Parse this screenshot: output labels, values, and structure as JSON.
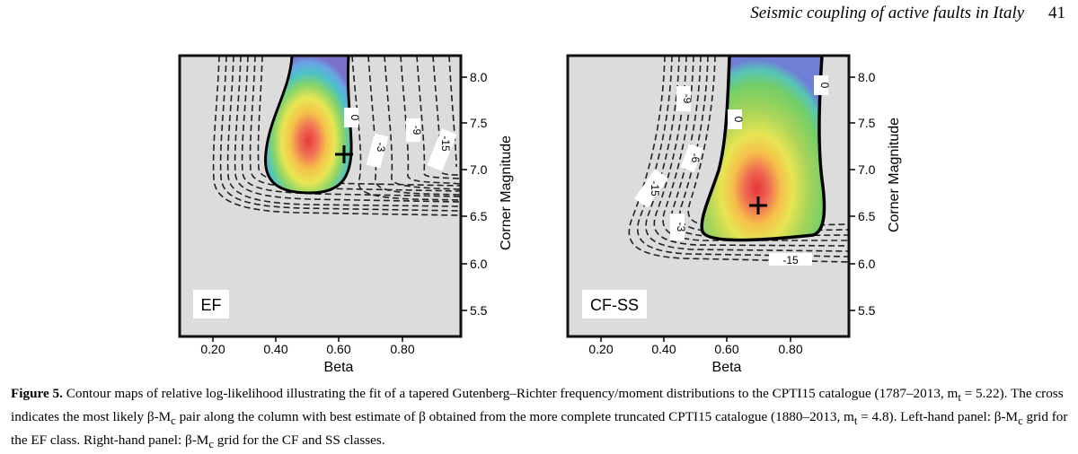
{
  "header": {
    "running_title": "Seismic coupling of active faults in Italy",
    "page_number": "41"
  },
  "panels": [
    {
      "label": "EF",
      "xlabel": "Beta",
      "ylabel": "Corner Magnitude",
      "x_ticks": [
        "0.20",
        "0.40",
        "0.60",
        "0.80"
      ],
      "y_ticks": [
        "8.0",
        "7.5",
        "7.0",
        "6.5",
        "6.0",
        "5.5"
      ],
      "contour_labels": [
        "0",
        "-3",
        "-9",
        "-15"
      ],
      "best_fit": {
        "beta": 0.62,
        "corner_magnitude": 7.15
      }
    },
    {
      "label": "CF-SS",
      "xlabel": "Beta",
      "ylabel": "Corner Magnitude",
      "x_ticks": [
        "0.20",
        "0.40",
        "0.60",
        "0.80"
      ],
      "y_ticks": [
        "8.0",
        "7.5",
        "7.0",
        "6.5",
        "6.0",
        "5.5"
      ],
      "contour_labels": [
        "0",
        "0",
        "-9",
        "-6",
        "-15",
        "-3",
        "-15"
      ],
      "best_fit": {
        "beta": 0.72,
        "corner_magnitude": 6.6
      }
    }
  ],
  "caption": {
    "figure_label": "Figure 5.",
    "line1": "Contour maps of relative log-likelihood illustrating the fit of a tapered Gutenberg–Richter frequency/moment distributions to the CPTI15 catalogue",
    "line2": "(1787–2013, m",
    "line2_sub": "t",
    "line2_rest": " = 5.22). The cross indicates the most likely β-M",
    "line2_sub2": "c",
    "line2_rest2": " pair along the column with best estimate of β obtained from the more complete truncated",
    "line3": "CPTI15 catalogue (1880–2013, m",
    "line3_sub": "t",
    "line3_rest": " = 4.8). Left-hand panel: β-M",
    "line3_sub2": "c",
    "line3_rest2": " grid for the EF class. Right-hand panel: β-M",
    "line3_sub3": "c",
    "line3_rest3": " grid for the CF and SS classes."
  }
}
